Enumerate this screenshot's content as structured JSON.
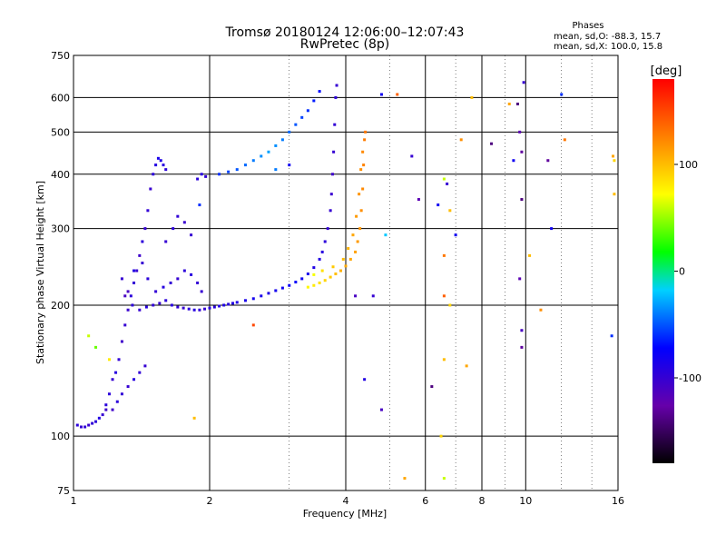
{
  "chart_data": {
    "type": "scatter",
    "title": "Tromsø 20180124 12:06:00–12:07:43",
    "subtitle": "RwPretec (8p)",
    "xlabel": "Frequency [MHz]",
    "ylabel": "Stationary phase Virtual Height [km]",
    "x_scale": "log",
    "y_scale": "log",
    "xlim": [
      1,
      16
    ],
    "ylim": [
      75,
      750
    ],
    "x_ticks": [
      1,
      2,
      4,
      6,
      8,
      10,
      16
    ],
    "x_tick_labels": [
      "1",
      "2",
      "4",
      "6",
      "8",
      "10",
      "16"
    ],
    "y_ticks": [
      75,
      100,
      200,
      300,
      400,
      500,
      600,
      750
    ],
    "y_tick_labels": [
      "75",
      "100",
      "200",
      "300",
      "400",
      "500",
      "600",
      "750"
    ],
    "grid": true,
    "legend": {
      "title": "Phases",
      "lines": [
        "mean, sd,O: -88.3, 15.7",
        "mean, sd,X: 100.0, 15.8"
      ],
      "placement": "top-right"
    },
    "colorbar": {
      "label": "[deg]",
      "range": [
        -180,
        180
      ],
      "ticks": [
        -100,
        0,
        100
      ],
      "tick_labels": [
        "-100",
        "0",
        "100"
      ],
      "colormap": "rainbow"
    },
    "series": [
      {
        "trace": "o",
        "points": [
          [
            1.02,
            106,
            -95
          ],
          [
            1.04,
            105,
            -100
          ],
          [
            1.06,
            105,
            -98
          ],
          [
            1.08,
            106,
            -102
          ],
          [
            1.1,
            107,
            -97
          ],
          [
            1.12,
            108,
            -95
          ],
          [
            1.14,
            110,
            -90
          ],
          [
            1.16,
            112,
            -100
          ],
          [
            1.18,
            115,
            -105
          ],
          [
            1.2,
            125,
            -95
          ],
          [
            1.22,
            135,
            -100
          ],
          [
            1.24,
            140,
            -92
          ],
          [
            1.26,
            150,
            -98
          ],
          [
            1.28,
            165,
            -105
          ],
          [
            1.3,
            180,
            -100
          ],
          [
            1.32,
            195,
            -102
          ],
          [
            1.34,
            210,
            -95
          ],
          [
            1.36,
            225,
            -98
          ],
          [
            1.38,
            240,
            -100
          ],
          [
            1.4,
            260,
            -105
          ],
          [
            1.42,
            280,
            -95
          ],
          [
            1.44,
            300,
            -100
          ],
          [
            1.46,
            330,
            -98
          ],
          [
            1.48,
            370,
            -102
          ],
          [
            1.5,
            400,
            -95
          ],
          [
            1.52,
            420,
            -90
          ],
          [
            1.54,
            435,
            -85
          ],
          [
            1.56,
            430,
            -88
          ],
          [
            1.58,
            420,
            -92
          ],
          [
            1.6,
            410,
            -95
          ],
          [
            1.3,
            210,
            -110
          ],
          [
            1.35,
            200,
            -95
          ],
          [
            1.4,
            195,
            -100
          ],
          [
            1.45,
            198,
            -92
          ],
          [
            1.5,
            200,
            -98
          ],
          [
            1.55,
            202,
            -100
          ],
          [
            1.6,
            205,
            -95
          ],
          [
            1.65,
            200,
            -92
          ],
          [
            1.7,
            198,
            -98
          ],
          [
            1.75,
            197,
            -100
          ],
          [
            1.8,
            196,
            -95
          ],
          [
            1.85,
            195,
            -92
          ],
          [
            1.9,
            195,
            -98
          ],
          [
            1.95,
            196,
            -100
          ],
          [
            2.0,
            197,
            -95
          ],
          [
            2.05,
            198,
            -92
          ],
          [
            2.1,
            199,
            -90
          ],
          [
            2.15,
            200,
            -88
          ],
          [
            2.2,
            201,
            -92
          ],
          [
            2.25,
            202,
            -90
          ],
          [
            2.3,
            203,
            -88
          ],
          [
            2.4,
            205,
            -85
          ],
          [
            2.5,
            207,
            -82
          ],
          [
            2.6,
            210,
            -85
          ],
          [
            2.7,
            213,
            -88
          ],
          [
            2.8,
            216,
            -82
          ],
          [
            2.9,
            219,
            -80
          ],
          [
            3.0,
            222,
            -78
          ],
          [
            3.1,
            226,
            -75
          ],
          [
            3.2,
            230,
            -80
          ],
          [
            3.3,
            236,
            -85
          ],
          [
            3.4,
            244,
            -88
          ],
          [
            3.5,
            255,
            -90
          ],
          [
            3.55,
            265,
            -92
          ],
          [
            3.6,
            280,
            -95
          ],
          [
            3.65,
            300,
            -98
          ],
          [
            3.7,
            330,
            -100
          ],
          [
            3.72,
            360,
            -102
          ],
          [
            3.74,
            400,
            -105
          ],
          [
            3.76,
            450,
            -100
          ],
          [
            3.78,
            520,
            -98
          ],
          [
            3.8,
            600,
            -95
          ],
          [
            3.82,
            640,
            -100
          ],
          [
            1.28,
            230,
            -100
          ],
          [
            1.32,
            215,
            -110
          ],
          [
            1.36,
            240,
            -90
          ],
          [
            1.42,
            250,
            -100
          ],
          [
            1.46,
            230,
            -95
          ],
          [
            1.52,
            215,
            -98
          ],
          [
            1.58,
            220,
            -92
          ],
          [
            1.64,
            225,
            -98
          ],
          [
            1.7,
            230,
            -100
          ],
          [
            1.76,
            240,
            -95
          ],
          [
            1.82,
            235,
            -92
          ],
          [
            1.88,
            225,
            -98
          ],
          [
            1.92,
            215,
            -100
          ],
          [
            1.25,
            120,
            -95
          ],
          [
            1.28,
            125,
            -98
          ],
          [
            1.32,
            130,
            -100
          ],
          [
            1.36,
            135,
            -92
          ],
          [
            1.4,
            140,
            -98
          ],
          [
            1.44,
            145,
            -100
          ],
          [
            1.22,
            115,
            -105
          ],
          [
            1.18,
            118,
            -95
          ],
          [
            1.6,
            280,
            -100
          ],
          [
            1.66,
            300,
            -95
          ],
          [
            1.7,
            320,
            -98
          ],
          [
            1.76,
            310,
            -102
          ],
          [
            1.82,
            290,
            -100
          ],
          [
            1.88,
            390,
            -95
          ],
          [
            1.92,
            400,
            -92
          ],
          [
            1.96,
            395,
            -98
          ]
        ]
      },
      {
        "trace": "x",
        "points": [
          [
            2.1,
            400,
            -60
          ],
          [
            2.2,
            405,
            -55
          ],
          [
            2.3,
            410,
            -50
          ],
          [
            2.4,
            420,
            -45
          ],
          [
            2.5,
            430,
            -40
          ],
          [
            2.6,
            440,
            -35
          ],
          [
            2.7,
            450,
            -30
          ],
          [
            2.8,
            465,
            -35
          ],
          [
            2.9,
            480,
            -40
          ],
          [
            3.0,
            500,
            -45
          ],
          [
            3.1,
            520,
            -50
          ],
          [
            3.2,
            540,
            -55
          ],
          [
            3.3,
            560,
            -60
          ],
          [
            3.4,
            590,
            -65
          ],
          [
            3.5,
            620,
            -70
          ],
          [
            3.3,
            220,
            75
          ],
          [
            3.4,
            222,
            80
          ],
          [
            3.5,
            225,
            85
          ],
          [
            3.6,
            228,
            90
          ],
          [
            3.7,
            232,
            95
          ],
          [
            3.8,
            236,
            100
          ],
          [
            3.9,
            240,
            105
          ],
          [
            4.0,
            246,
            108
          ],
          [
            4.1,
            255,
            110
          ],
          [
            4.2,
            265,
            112
          ],
          [
            4.25,
            280,
            115
          ],
          [
            4.3,
            300,
            118
          ],
          [
            4.33,
            330,
            120
          ],
          [
            4.36,
            370,
            122
          ],
          [
            4.38,
            420,
            125
          ],
          [
            4.4,
            480,
            128
          ],
          [
            4.42,
            500,
            130
          ],
          [
            3.4,
            235,
            70
          ],
          [
            3.55,
            240,
            85
          ],
          [
            3.75,
            245,
            95
          ],
          [
            3.95,
            255,
            100
          ],
          [
            4.05,
            270,
            105
          ],
          [
            4.15,
            290,
            110
          ],
          [
            4.22,
            320,
            115
          ],
          [
            4.28,
            360,
            118
          ],
          [
            4.32,
            410,
            120
          ],
          [
            4.36,
            450,
            122
          ]
        ]
      },
      {
        "trace": "scatter",
        "points": [
          [
            1.08,
            170,
            60
          ],
          [
            1.12,
            160,
            40
          ],
          [
            1.2,
            150,
            80
          ],
          [
            1.85,
            110,
            100
          ],
          [
            1.9,
            340,
            -60
          ],
          [
            2.5,
            180,
            150
          ],
          [
            2.8,
            410,
            -40
          ],
          [
            3.0,
            420,
            -80
          ],
          [
            4.2,
            210,
            -110
          ],
          [
            4.4,
            135,
            -90
          ],
          [
            4.6,
            210,
            -100
          ],
          [
            4.8,
            115,
            -110
          ],
          [
            4.9,
            290,
            -20
          ],
          [
            4.8,
            610,
            -80
          ],
          [
            5.2,
            610,
            140
          ],
          [
            5.4,
            80,
            110
          ],
          [
            5.6,
            440,
            -100
          ],
          [
            5.8,
            350,
            -120
          ],
          [
            6.2,
            130,
            -140
          ],
          [
            6.4,
            340,
            -80
          ],
          [
            6.5,
            100,
            90
          ],
          [
            6.6,
            80,
            60
          ],
          [
            6.6,
            210,
            140
          ],
          [
            6.6,
            260,
            130
          ],
          [
            6.6,
            150,
            100
          ],
          [
            6.6,
            390,
            60
          ],
          [
            6.7,
            380,
            -100
          ],
          [
            6.8,
            330,
            100
          ],
          [
            6.8,
            200,
            90
          ],
          [
            7.0,
            290,
            -80
          ],
          [
            7.2,
            480,
            120
          ],
          [
            7.4,
            145,
            110
          ],
          [
            7.6,
            600,
            100
          ],
          [
            8.4,
            470,
            -140
          ],
          [
            9.2,
            580,
            110
          ],
          [
            9.4,
            430,
            -80
          ],
          [
            9.6,
            580,
            -140
          ],
          [
            9.7,
            500,
            -120
          ],
          [
            9.8,
            450,
            -130
          ],
          [
            9.8,
            350,
            -140
          ],
          [
            9.7,
            230,
            -120
          ],
          [
            9.8,
            175,
            -110
          ],
          [
            9.8,
            160,
            -130
          ],
          [
            9.9,
            650,
            -100
          ],
          [
            10.2,
            260,
            100
          ],
          [
            10.8,
            195,
            120
          ],
          [
            11.2,
            430,
            -130
          ],
          [
            11.4,
            300,
            -80
          ],
          [
            12.0,
            610,
            -60
          ],
          [
            12.2,
            480,
            130
          ],
          [
            15.5,
            170,
            -60
          ],
          [
            15.6,
            440,
            110
          ],
          [
            15.7,
            430,
            90
          ],
          [
            15.7,
            360,
            100
          ]
        ]
      }
    ]
  }
}
